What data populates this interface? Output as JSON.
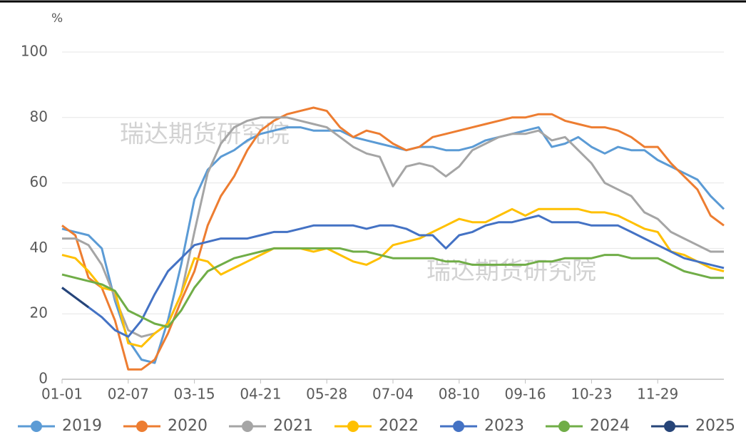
{
  "chart_data": {
    "type": "line",
    "y_label": "%",
    "annotations": [
      "瑞达期货研究院",
      "瑞达期货研究院"
    ],
    "categories": [
      "01-01",
      null,
      null,
      null,
      null,
      "02-07",
      null,
      null,
      null,
      null,
      "03-15",
      null,
      null,
      null,
      null,
      "04-21",
      null,
      null,
      null,
      null,
      "05-28",
      null,
      null,
      null,
      null,
      "07-04",
      null,
      null,
      null,
      null,
      "08-10",
      null,
      null,
      null,
      null,
      "09-16",
      null,
      null,
      null,
      null,
      "10-23",
      null,
      null,
      null,
      null,
      "11-29",
      null,
      null,
      null,
      null,
      null
    ],
    "series": [
      {
        "name": "2019",
        "color": "#5b9bd5",
        "values": [
          46,
          45,
          44,
          40,
          24,
          12,
          6,
          5,
          18,
          35,
          55,
          64,
          68,
          70,
          73,
          75,
          76,
          77,
          77,
          76,
          76,
          76,
          74,
          73,
          72,
          71,
          70,
          71,
          71,
          70,
          70,
          71,
          73,
          74,
          75,
          76,
          77,
          71,
          72,
          74,
          71,
          69,
          71,
          70,
          70,
          67,
          65,
          63,
          61,
          56,
          52
        ]
      },
      {
        "name": "2020",
        "color": "#ed7d31",
        "values": [
          47,
          44,
          31,
          28,
          18,
          3,
          3,
          6,
          14,
          24,
          33,
          47,
          56,
          62,
          70,
          76,
          79,
          81,
          82,
          83,
          82,
          77,
          74,
          76,
          75,
          72,
          70,
          71,
          74,
          75,
          76,
          77,
          78,
          79,
          80,
          80,
          81,
          81,
          79,
          78,
          77,
          77,
          76,
          74,
          71,
          71,
          66,
          62,
          58,
          50,
          47
        ]
      },
      {
        "name": "2021",
        "color": "#a5a5a5",
        "values": [
          43,
          43,
          41,
          35,
          25,
          15,
          13,
          14,
          17,
          26,
          45,
          63,
          72,
          77,
          79,
          80,
          80,
          80,
          79,
          78,
          77,
          74,
          71,
          69,
          68,
          59,
          65,
          66,
          65,
          62,
          65,
          70,
          72,
          74,
          75,
          75,
          76,
          73,
          74,
          70,
          66,
          60,
          58,
          56,
          51,
          49,
          45,
          43,
          41,
          39,
          39
        ]
      },
      {
        "name": "2022",
        "color": "#ffc000",
        "values": [
          38,
          37,
          33,
          28,
          27,
          11,
          10,
          14,
          17,
          26,
          37,
          36,
          32,
          34,
          36,
          38,
          40,
          40,
          40,
          39,
          40,
          38,
          36,
          35,
          37,
          41,
          42,
          43,
          45,
          47,
          49,
          48,
          48,
          50,
          52,
          50,
          52,
          52,
          52,
          52,
          51,
          51,
          50,
          48,
          46,
          45,
          39,
          38,
          36,
          34,
          33
        ]
      },
      {
        "name": "2023",
        "color": "#4472c4",
        "values": [
          28,
          25,
          22,
          19,
          15,
          13,
          18,
          26,
          33,
          37,
          41,
          42,
          43,
          43,
          43,
          44,
          45,
          45,
          46,
          47,
          47,
          47,
          47,
          46,
          47,
          47,
          46,
          44,
          44,
          40,
          44,
          45,
          47,
          48,
          48,
          49,
          50,
          48,
          48,
          48,
          47,
          47,
          47,
          45,
          43,
          41,
          39,
          37,
          36,
          35,
          34
        ]
      },
      {
        "name": "2024",
        "color": "#70ad47",
        "values": [
          32,
          31,
          30,
          29,
          27,
          21,
          19,
          17,
          16,
          21,
          28,
          33,
          35,
          37,
          38,
          39,
          40,
          40,
          40,
          40,
          40,
          40,
          39,
          39,
          38,
          37,
          37,
          37,
          37,
          36,
          36,
          35,
          35,
          35,
          35,
          35,
          36,
          36,
          37,
          37,
          37,
          38,
          38,
          37,
          37,
          37,
          35,
          33,
          32,
          31,
          31
        ]
      },
      {
        "name": "2025",
        "color": "#264478",
        "values": [
          28,
          25,
          22,
          null,
          null,
          null,
          null,
          null,
          null,
          null,
          null,
          null,
          null,
          null,
          null,
          null,
          null,
          null,
          null,
          null,
          null,
          null,
          null,
          null,
          null,
          null,
          null,
          null,
          null,
          null,
          null,
          null,
          null,
          null,
          null,
          null,
          null,
          null,
          null,
          null,
          null,
          null,
          null,
          null,
          null,
          null,
          null,
          null,
          null,
          null,
          null
        ]
      }
    ],
    "ylim": [
      0,
      100
    ],
    "yticks": [
      0,
      20,
      40,
      60,
      80,
      100
    ],
    "grid": true,
    "legend": "bottom"
  }
}
